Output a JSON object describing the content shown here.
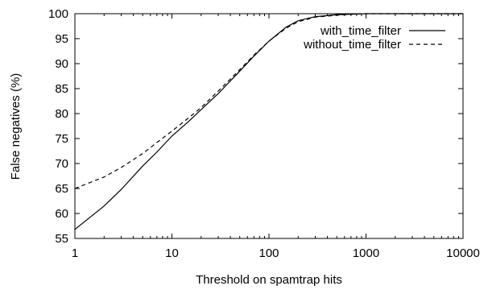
{
  "chart_data": {
    "type": "line",
    "title": "",
    "xlabel": "Threshold on spamtrap hits",
    "ylabel": "False negatives (%)",
    "xscale": "log",
    "xlim": [
      1,
      10000
    ],
    "ylim": [
      55,
      100
    ],
    "xticks": [
      1,
      10,
      100,
      1000,
      10000
    ],
    "xtick_labels": [
      "1",
      "10",
      "100",
      "1000",
      "10000"
    ],
    "yticks": [
      55,
      60,
      65,
      70,
      75,
      80,
      85,
      90,
      95,
      100
    ],
    "ytick_labels": [
      "55",
      "60",
      "65",
      "70",
      "75",
      "80",
      "85",
      "90",
      "95",
      "100"
    ],
    "grid": false,
    "legend_position": "top-right",
    "series": [
      {
        "name": "with_time_filter",
        "style": "solid",
        "color": "#000000",
        "x": [
          1,
          2,
          3,
          5,
          7,
          10,
          15,
          20,
          30,
          50,
          70,
          100,
          150,
          200,
          300,
          500,
          700,
          1000,
          2000,
          5000,
          10000
        ],
        "y": [
          56.8,
          61.5,
          64.8,
          69.5,
          72.3,
          75.5,
          78.5,
          80.8,
          84.0,
          88.5,
          91.5,
          94.5,
          97.3,
          98.6,
          99.4,
          99.8,
          99.9,
          100,
          100,
          100,
          100
        ]
      },
      {
        "name": "without_time_filter",
        "style": "dashed",
        "color": "#000000",
        "x": [
          1,
          2,
          3,
          5,
          7,
          10,
          15,
          20,
          30,
          50,
          70,
          100,
          150,
          200,
          300,
          500,
          700,
          1000,
          2000,
          5000,
          10000
        ],
        "y": [
          65.0,
          67.3,
          69.2,
          72.0,
          74.2,
          76.5,
          79.2,
          81.2,
          84.5,
          88.8,
          91.7,
          94.5,
          97.1,
          98.4,
          99.3,
          99.7,
          99.9,
          100,
          100,
          100,
          100
        ]
      }
    ]
  }
}
